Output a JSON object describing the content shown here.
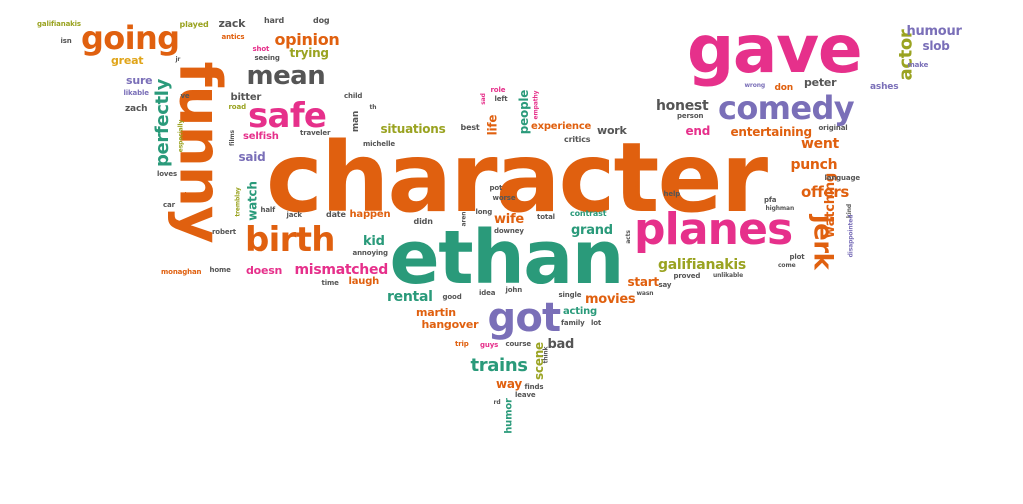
{
  "palette": {
    "orange": "#e0600f",
    "teal": "#2a9a7a",
    "pink": "#e6308b",
    "purple": "#7a6fb8",
    "olive": "#9aa321",
    "gold": "#e0a418",
    "gray": "#555555"
  },
  "words": [
    {
      "text": "character",
      "color": "orange",
      "weight": 100
    },
    {
      "text": "ethan",
      "color": "teal",
      "weight": 80
    },
    {
      "text": "funny",
      "color": "orange",
      "weight": 75
    },
    {
      "text": "gave",
      "color": "pink",
      "weight": 85
    },
    {
      "text": "planes",
      "color": "pink",
      "weight": 55
    },
    {
      "text": "got",
      "color": "purple",
      "weight": 50
    },
    {
      "text": "comedy",
      "color": "purple",
      "weight": 42
    },
    {
      "text": "birth",
      "color": "orange",
      "weight": 42
    },
    {
      "text": "safe",
      "color": "pink",
      "weight": 40
    },
    {
      "text": "going",
      "color": "orange",
      "weight": 38
    },
    {
      "text": "mean",
      "color": "gray",
      "weight": 32
    },
    {
      "text": "jerk",
      "color": "orange",
      "weight": 30
    },
    {
      "text": "perfectly",
      "color": "teal",
      "weight": 24
    },
    {
      "text": "actor",
      "color": "olive",
      "weight": 22
    },
    {
      "text": "trains",
      "color": "teal",
      "weight": 20
    },
    {
      "text": "opinion",
      "color": "orange",
      "weight": 18
    },
    {
      "text": "honest",
      "color": "gray",
      "weight": 16
    },
    {
      "text": "watching",
      "color": "orange",
      "weight": 16
    },
    {
      "text": "galifianakis",
      "color": "olive",
      "weight": 16
    },
    {
      "text": "mismatched",
      "color": "pink",
      "weight": 15
    },
    {
      "text": "rental",
      "color": "teal",
      "weight": 15
    },
    {
      "text": "offers",
      "color": "orange",
      "weight": 15
    },
    {
      "text": "movies",
      "color": "orange",
      "weight": 14
    },
    {
      "text": "went",
      "color": "orange",
      "weight": 14
    },
    {
      "text": "punch",
      "color": "orange",
      "weight": 14
    },
    {
      "text": "grand",
      "color": "teal",
      "weight": 14
    },
    {
      "text": "kid",
      "color": "teal",
      "weight": 14
    },
    {
      "text": "wife",
      "color": "orange",
      "weight": 14
    },
    {
      "text": "humour",
      "color": "purple",
      "weight": 13
    },
    {
      "text": "scene",
      "color": "olive",
      "weight": 13
    },
    {
      "text": "bad",
      "color": "gray",
      "weight": 13
    },
    {
      "text": "situations",
      "color": "olive",
      "weight": 12
    },
    {
      "text": "trying",
      "color": "olive",
      "weight": 12
    },
    {
      "text": "people",
      "color": "teal",
      "weight": 12
    },
    {
      "text": "life",
      "color": "orange",
      "weight": 12
    },
    {
      "text": "entertaining",
      "color": "orange",
      "weight": 12
    },
    {
      "text": "end",
      "color": "pink",
      "weight": 12
    },
    {
      "text": "slob",
      "color": "purple",
      "weight": 12
    },
    {
      "text": "start",
      "color": "orange",
      "weight": 12
    },
    {
      "text": "watch",
      "color": "teal",
      "weight": 12
    },
    {
      "text": "said",
      "color": "purple",
      "weight": 12
    },
    {
      "text": "doesn",
      "color": "pink",
      "weight": 11
    },
    {
      "text": "great",
      "color": "gold",
      "weight": 11
    },
    {
      "text": "sure",
      "color": "purple",
      "weight": 11
    },
    {
      "text": "zack",
      "color": "gray",
      "weight": 11
    },
    {
      "text": "martin",
      "color": "orange",
      "weight": 11
    },
    {
      "text": "hangover",
      "color": "orange",
      "weight": 11
    },
    {
      "text": "acting",
      "color": "teal",
      "weight": 11
    },
    {
      "text": "way",
      "color": "orange",
      "weight": 11
    },
    {
      "text": "humor",
      "color": "teal",
      "weight": 11
    },
    {
      "text": "peter",
      "color": "gray",
      "weight": 10
    },
    {
      "text": "don",
      "color": "orange",
      "weight": 10
    },
    {
      "text": "experience",
      "color": "orange",
      "weight": 10
    },
    {
      "text": "work",
      "color": "gray",
      "weight": 10
    },
    {
      "text": "bitter",
      "color": "gray",
      "weight": 10
    },
    {
      "text": "selfish",
      "color": "pink",
      "weight": 9
    },
    {
      "text": "happen",
      "color": "orange",
      "weight": 9
    },
    {
      "text": "laugh",
      "color": "orange",
      "weight": 9
    },
    {
      "text": "ashes",
      "color": "purple",
      "weight": 9
    },
    {
      "text": "contrast",
      "color": "teal",
      "weight": 8
    },
    {
      "text": "critics",
      "color": "gray",
      "weight": 8
    },
    {
      "text": "best",
      "color": "gray",
      "weight": 8
    },
    {
      "text": "man",
      "color": "gray",
      "weight": 8
    },
    {
      "text": "zach",
      "color": "gray",
      "weight": 8
    },
    {
      "text": "galifianakis",
      "color": "olive",
      "weight": 6
    },
    {
      "text": "isn",
      "color": "gray",
      "weight": 6
    },
    {
      "text": "played",
      "color": "olive",
      "weight": 7
    },
    {
      "text": "hard",
      "color": "gray",
      "weight": 7
    },
    {
      "text": "dog",
      "color": "gray",
      "weight": 7
    },
    {
      "text": "antics",
      "color": "orange",
      "weight": 6
    },
    {
      "text": "shot",
      "color": "pink",
      "weight": 6
    },
    {
      "text": "seeing",
      "color": "gray",
      "weight": 6
    },
    {
      "text": "jr",
      "color": "gray",
      "weight": 5
    },
    {
      "text": "likable",
      "color": "purple",
      "weight": 7
    },
    {
      "text": "ve",
      "color": "gray",
      "weight": 6
    },
    {
      "text": "road",
      "color": "olive",
      "weight": 7
    },
    {
      "text": "child",
      "color": "gray",
      "weight": 6
    },
    {
      "text": "th",
      "color": "gray",
      "weight": 5
    },
    {
      "text": "role",
      "color": "pink",
      "weight": 6
    },
    {
      "text": "left",
      "color": "gray",
      "weight": 6
    },
    {
      "text": "sad",
      "color": "pink",
      "weight": 6
    },
    {
      "text": "empathy",
      "color": "pink",
      "weight": 5
    },
    {
      "text": "make",
      "color": "purple",
      "weight": 6
    },
    {
      "text": "wrong",
      "color": "purple",
      "weight": 5
    },
    {
      "text": "person",
      "color": "gray",
      "weight": 6
    },
    {
      "text": "original",
      "color": "gray",
      "weight": 6
    },
    {
      "text": "language",
      "color": "gray",
      "weight": 6
    },
    {
      "text": "especially",
      "color": "olive",
      "weight": 5
    },
    {
      "text": "films",
      "color": "gray",
      "weight": 5
    },
    {
      "text": "traveler",
      "color": "gray",
      "weight": 7
    },
    {
      "text": "michelle",
      "color": "gray",
      "weight": 6
    },
    {
      "text": "loves",
      "color": "gray",
      "weight": 6
    },
    {
      "text": "know",
      "color": "orange",
      "weight": 5
    },
    {
      "text": "car",
      "color": "gray",
      "weight": 6
    },
    {
      "text": "tremblay",
      "color": "olive",
      "weight": 5
    },
    {
      "text": "half",
      "color": "gray",
      "weight": 6
    },
    {
      "text": "jack",
      "color": "gray",
      "weight": 6
    },
    {
      "text": "date",
      "color": "gray",
      "weight": 7
    },
    {
      "text": "didn",
      "color": "gray",
      "weight": 7
    },
    {
      "text": "long",
      "color": "gray",
      "weight": 7
    },
    {
      "text": "total",
      "color": "gray",
      "weight": 7
    },
    {
      "text": "pot",
      "color": "gray",
      "weight": 6
    },
    {
      "text": "worse",
      "color": "gray",
      "weight": 6
    },
    {
      "text": "downey",
      "color": "gray",
      "weight": 6
    },
    {
      "text": "architect",
      "color": "orange",
      "weight": 5
    },
    {
      "text": "help",
      "color": "gray",
      "weight": 6
    },
    {
      "text": "pfa",
      "color": "gray",
      "weight": 6
    },
    {
      "text": "highman",
      "color": "gray",
      "weight": 5
    },
    {
      "text": "kind",
      "color": "gray",
      "weight": 5
    },
    {
      "text": "disappointed",
      "color": "purple",
      "weight": 5
    },
    {
      "text": "plot",
      "color": "gray",
      "weight": 6
    },
    {
      "text": "come",
      "color": "gray",
      "weight": 5
    },
    {
      "text": "robert",
      "color": "gray",
      "weight": 6
    },
    {
      "text": "acts",
      "color": "gray",
      "weight": 5
    },
    {
      "text": "annoying",
      "color": "gray",
      "weight": 6
    },
    {
      "text": "monaghan",
      "color": "orange",
      "weight": 5
    },
    {
      "text": "home",
      "color": "gray",
      "weight": 6
    },
    {
      "text": "time",
      "color": "gray",
      "weight": 6
    },
    {
      "text": "good",
      "color": "gray",
      "weight": 6
    },
    {
      "text": "idea",
      "color": "gray",
      "weight": 6
    },
    {
      "text": "john",
      "color": "gray",
      "weight": 6
    },
    {
      "text": "single",
      "color": "gray",
      "weight": 6
    },
    {
      "text": "wasn",
      "color": "gray",
      "weight": 5
    },
    {
      "text": "say",
      "color": "gray",
      "weight": 6
    },
    {
      "text": "proved",
      "color": "gray",
      "weight": 6
    },
    {
      "text": "unlikable",
      "color": "gray",
      "weight": 5
    },
    {
      "text": "family",
      "color": "gray",
      "weight": 6
    },
    {
      "text": "lot",
      "color": "gray",
      "weight": 6
    },
    {
      "text": "trip",
      "color": "orange",
      "weight": 6
    },
    {
      "text": "guys",
      "color": "pink",
      "weight": 6
    },
    {
      "text": "course",
      "color": "gray",
      "weight": 6
    },
    {
      "text": "think",
      "color": "gray",
      "weight": 5
    },
    {
      "text": "finds",
      "color": "gray",
      "weight": 6
    },
    {
      "text": "leave",
      "color": "gray",
      "weight": 6
    },
    {
      "text": "rd",
      "color": "gray",
      "weight": 5
    },
    {
      "text": "aren",
      "color": "gray",
      "weight": 5
    }
  ]
}
